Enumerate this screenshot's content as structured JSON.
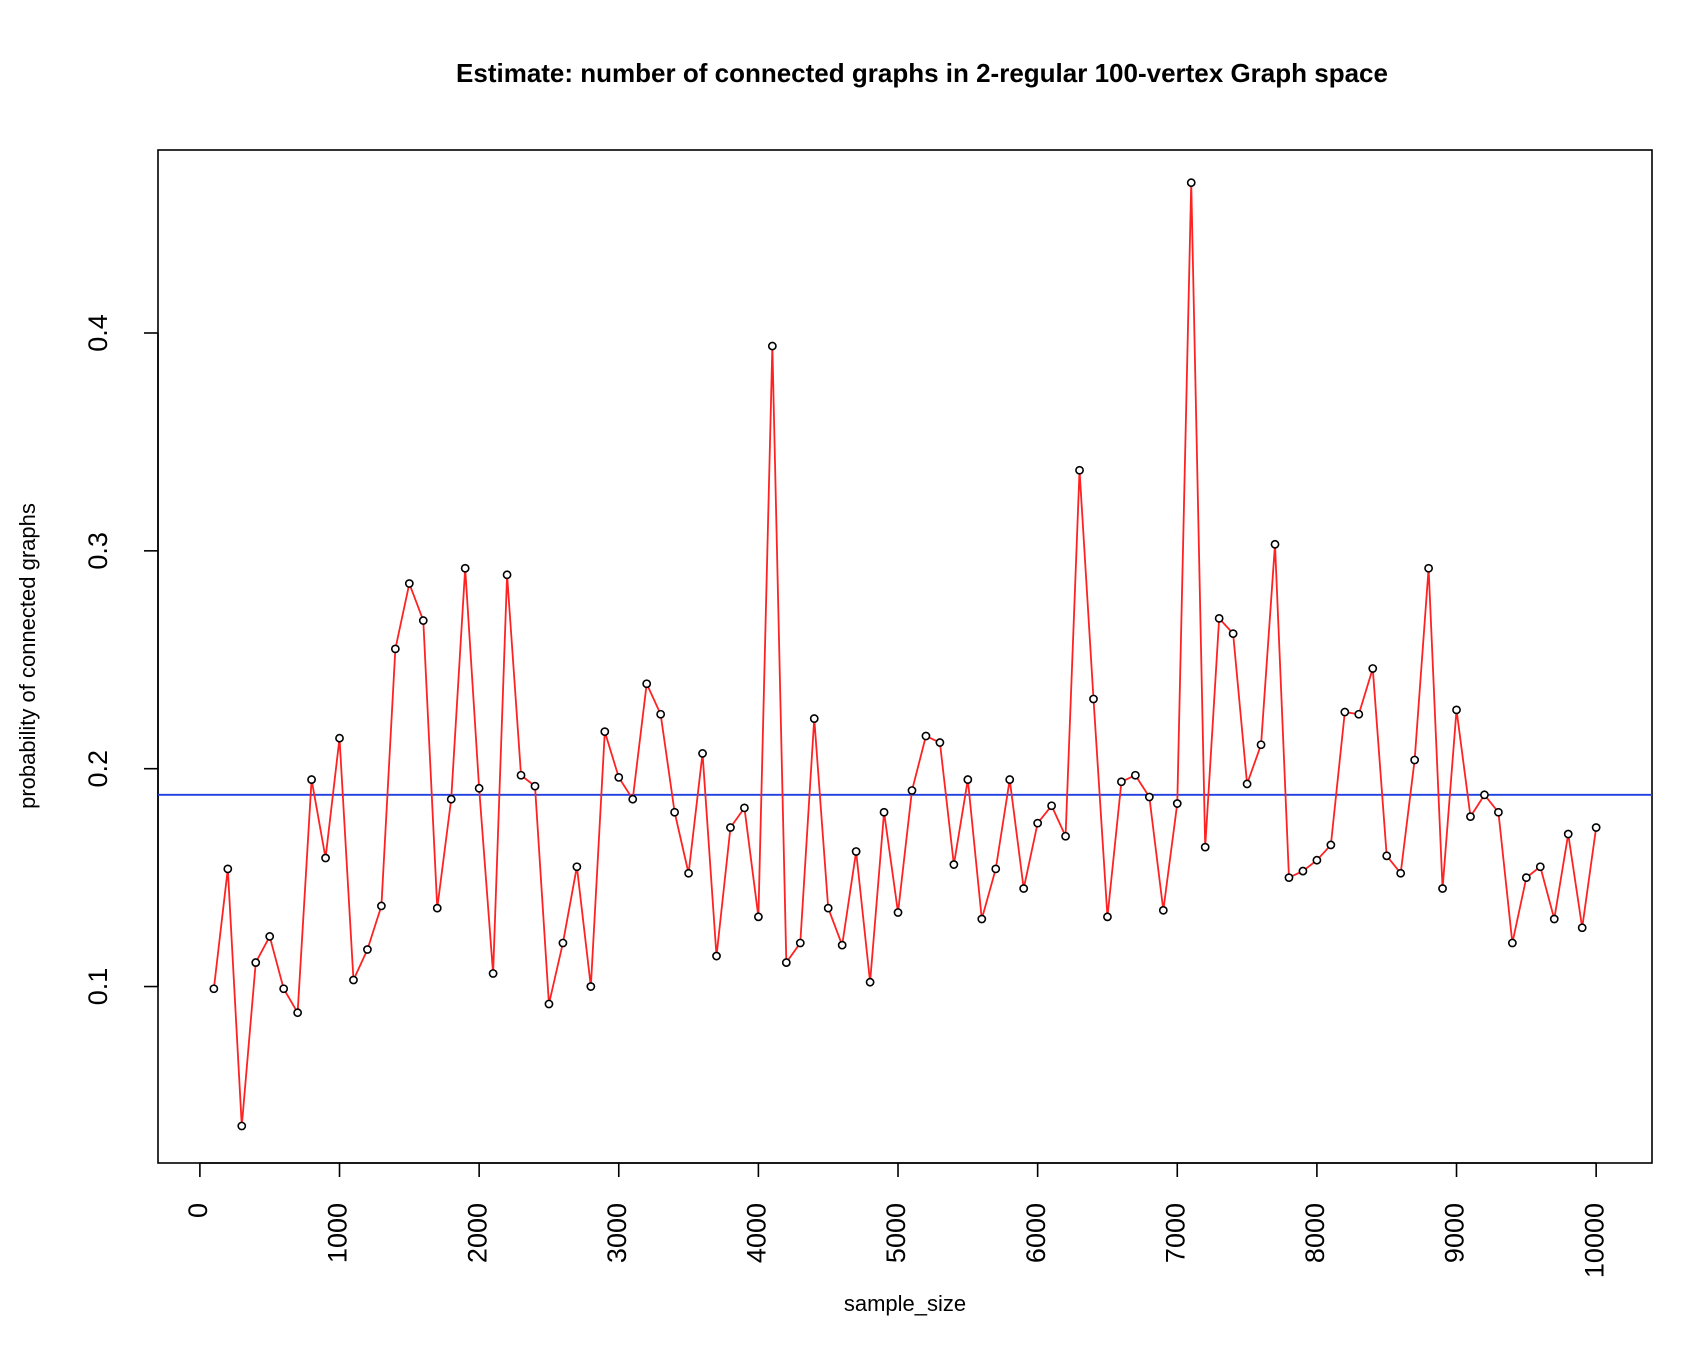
{
  "chart_data": {
    "type": "line",
    "title": "Estimate: number of connected graphs in 2-regular 100-vertex Graph space",
    "xlabel": "sample_size",
    "ylabel": "probability of connected graphs",
    "xlim": [
      -300,
      10400
    ],
    "ylim": [
      0.019,
      0.484
    ],
    "x_ticks": [
      0,
      1000,
      2000,
      3000,
      4000,
      5000,
      6000,
      7000,
      8000,
      9000,
      10000
    ],
    "x_tick_labels": [
      "0",
      "1000",
      "2000",
      "3000",
      "4000",
      "5000",
      "6000",
      "7000",
      "8000",
      "9000",
      "10000"
    ],
    "y_ticks": [
      0.1,
      0.2,
      0.3,
      0.4
    ],
    "y_tick_labels": [
      "0.1",
      "0.2",
      "0.3",
      "0.4"
    ],
    "grid": false,
    "colors": {
      "line": "#ff2222",
      "points": "#000000",
      "reference_line": "#1f3fe0"
    },
    "series": [
      {
        "x": [
          100,
          200,
          300,
          400,
          500,
          600,
          700,
          800,
          900,
          1000,
          1100,
          1200,
          1300,
          1400,
          1500,
          1600,
          1700,
          1800,
          1900,
          2000,
          2100,
          2200,
          2300,
          2400,
          2500,
          2600,
          2700,
          2800,
          2900,
          3000,
          3100,
          3200,
          3300,
          3400,
          3500,
          3600,
          3700,
          3800,
          3900,
          4000,
          4100,
          4200,
          4300,
          4400,
          4500,
          4600,
          4700,
          4800,
          4900,
          5000,
          5100,
          5200,
          5300,
          5400,
          5500,
          5600,
          5700,
          5800,
          5900,
          6000,
          6100,
          6200,
          6300,
          6400,
          6500,
          6600,
          6700,
          6800,
          6900,
          7000,
          7100,
          7200,
          7300,
          7400,
          7500,
          7600,
          7700,
          7800,
          7900,
          8000,
          8100,
          8200,
          8300,
          8400,
          8500,
          8600,
          8700,
          8800,
          8900,
          9000,
          9100,
          9200,
          9300,
          9400,
          9500,
          9600,
          9700,
          9800,
          9900,
          10000
        ],
        "y": [
          0.099,
          0.154,
          0.036,
          0.111,
          0.123,
          0.099,
          0.088,
          0.195,
          0.159,
          0.214,
          0.103,
          0.117,
          0.137,
          0.255,
          0.285,
          0.268,
          0.136,
          0.186,
          0.292,
          0.191,
          0.106,
          0.289,
          0.197,
          0.192,
          0.092,
          0.12,
          0.155,
          0.1,
          0.217,
          0.196,
          0.186,
          0.239,
          0.225,
          0.18,
          0.152,
          0.207,
          0.114,
          0.173,
          0.182,
          0.132,
          0.394,
          0.111,
          0.12,
          0.223,
          0.136,
          0.119,
          0.162,
          0.102,
          0.18,
          0.134,
          0.19,
          0.215,
          0.212,
          0.156,
          0.195,
          0.131,
          0.154,
          0.195,
          0.145,
          0.175,
          0.183,
          0.169,
          0.337,
          0.232,
          0.132,
          0.194,
          0.197,
          0.187,
          0.135,
          0.184,
          0.469,
          0.164,
          0.269,
          0.262,
          0.193,
          0.211,
          0.303,
          0.15,
          0.153,
          0.158,
          0.165,
          0.226,
          0.225,
          0.246,
          0.16,
          0.152,
          0.204,
          0.292,
          0.145,
          0.227,
          0.178,
          0.188,
          0.18,
          0.12,
          0.15,
          0.155,
          0.131,
          0.17,
          0.127,
          0.173
        ]
      }
    ],
    "reference_line": {
      "orientation": "horizontal",
      "y": 0.188
    }
  }
}
